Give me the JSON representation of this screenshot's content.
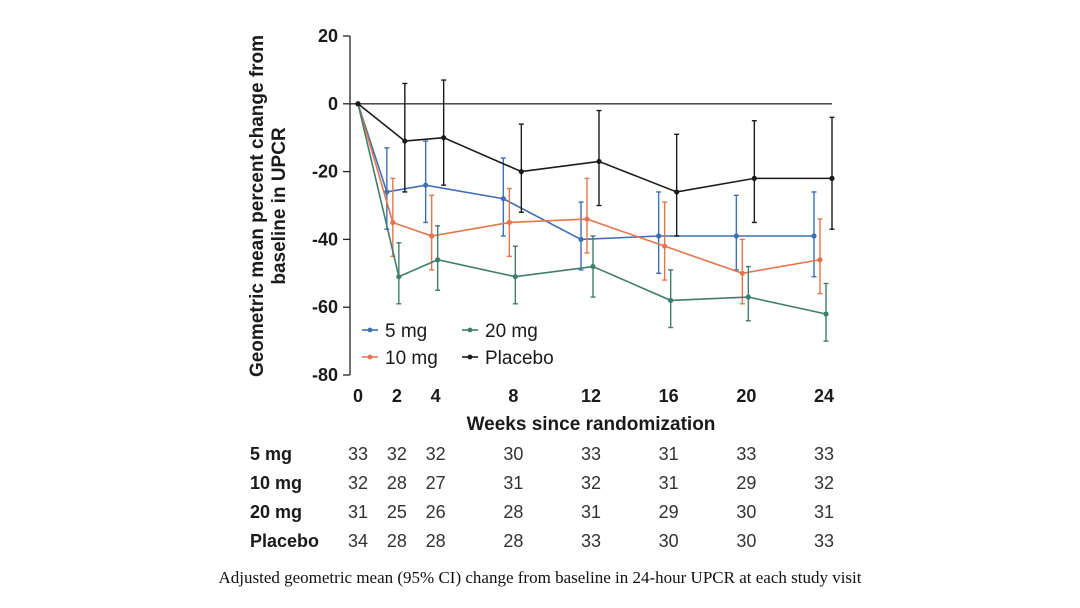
{
  "chart_data": {
    "type": "line",
    "title": "",
    "xlabel": "Weeks since randomization",
    "ylabel": "Geometric mean percent change from baseline in UPCR",
    "ylabel_lines": [
      "Geometric mean percent change from",
      "baseline in UPCR"
    ],
    "x": [
      0,
      2,
      4,
      8,
      12,
      16,
      20,
      24
    ],
    "xticks": [
      "0",
      "2",
      "4",
      "8",
      "12",
      "16",
      "20",
      "24"
    ],
    "xlim": [
      0,
      24
    ],
    "ylim": [
      -80,
      20
    ],
    "yticks": [
      20,
      0,
      -20,
      -40,
      -60,
      -80
    ],
    "grid": false,
    "reference_line": 0,
    "legend": {
      "placement": "bottom-left",
      "entries": [
        "5 mg",
        "20 mg",
        "10 mg",
        "Placebo"
      ]
    },
    "series": [
      {
        "name": "5 mg",
        "color": "#3f6fb5",
        "values": [
          0,
          -26,
          -24,
          -28,
          -40,
          -39,
          -39,
          -39
        ],
        "ci_lower": [
          0,
          -37,
          -35,
          -39,
          -49,
          -50,
          -49,
          -51
        ],
        "ci_upper": [
          0,
          -13,
          -11,
          -16,
          -29,
          -26,
          -27,
          -26
        ]
      },
      {
        "name": "10 mg",
        "color": "#e6744d",
        "values": [
          0,
          -35,
          -39,
          -35,
          -34,
          -42,
          -50,
          -46
        ],
        "ci_lower": [
          0,
          -45,
          -49,
          -45,
          -44,
          -52,
          -59,
          -56
        ],
        "ci_upper": [
          0,
          -22,
          -27,
          -25,
          -22,
          -29,
          -40,
          -34
        ]
      },
      {
        "name": "20 mg",
        "color": "#3f7d6c",
        "values": [
          0,
          -51,
          -46,
          -51,
          -48,
          -58,
          -57,
          -62
        ],
        "ci_lower": [
          0,
          -59,
          -55,
          -59,
          -57,
          -66,
          -64,
          -70
        ],
        "ci_upper": [
          0,
          -41,
          -36,
          -42,
          -39,
          -49,
          -48,
          -53
        ]
      },
      {
        "name": "Placebo",
        "color": "#1a1a1a",
        "values": [
          0,
          -11,
          -10,
          -20,
          -17,
          -26,
          -22,
          -22
        ],
        "ci_lower": [
          0,
          -26,
          -24,
          -32,
          -30,
          -39,
          -35,
          -37
        ],
        "ci_upper": [
          0,
          6,
          7,
          -6,
          -2,
          -9,
          -5,
          -4
        ]
      }
    ],
    "number_at_risk": {
      "rows": [
        {
          "label": "5 mg",
          "values": [
            "33",
            "32",
            "32",
            "30",
            "33",
            "31",
            "33",
            "33"
          ]
        },
        {
          "label": "10 mg",
          "values": [
            "32",
            "28",
            "27",
            "31",
            "32",
            "31",
            "29",
            "32"
          ]
        },
        {
          "label": "20 mg",
          "values": [
            "31",
            "25",
            "26",
            "28",
            "31",
            "29",
            "30",
            "31"
          ]
        },
        {
          "label": "Placebo",
          "values": [
            "34",
            "28",
            "28",
            "28",
            "33",
            "30",
            "30",
            "33"
          ]
        }
      ]
    }
  },
  "caption": "Adjusted geometric mean (95% CI) change from baseline in 24-hour UPCR at each study visit"
}
